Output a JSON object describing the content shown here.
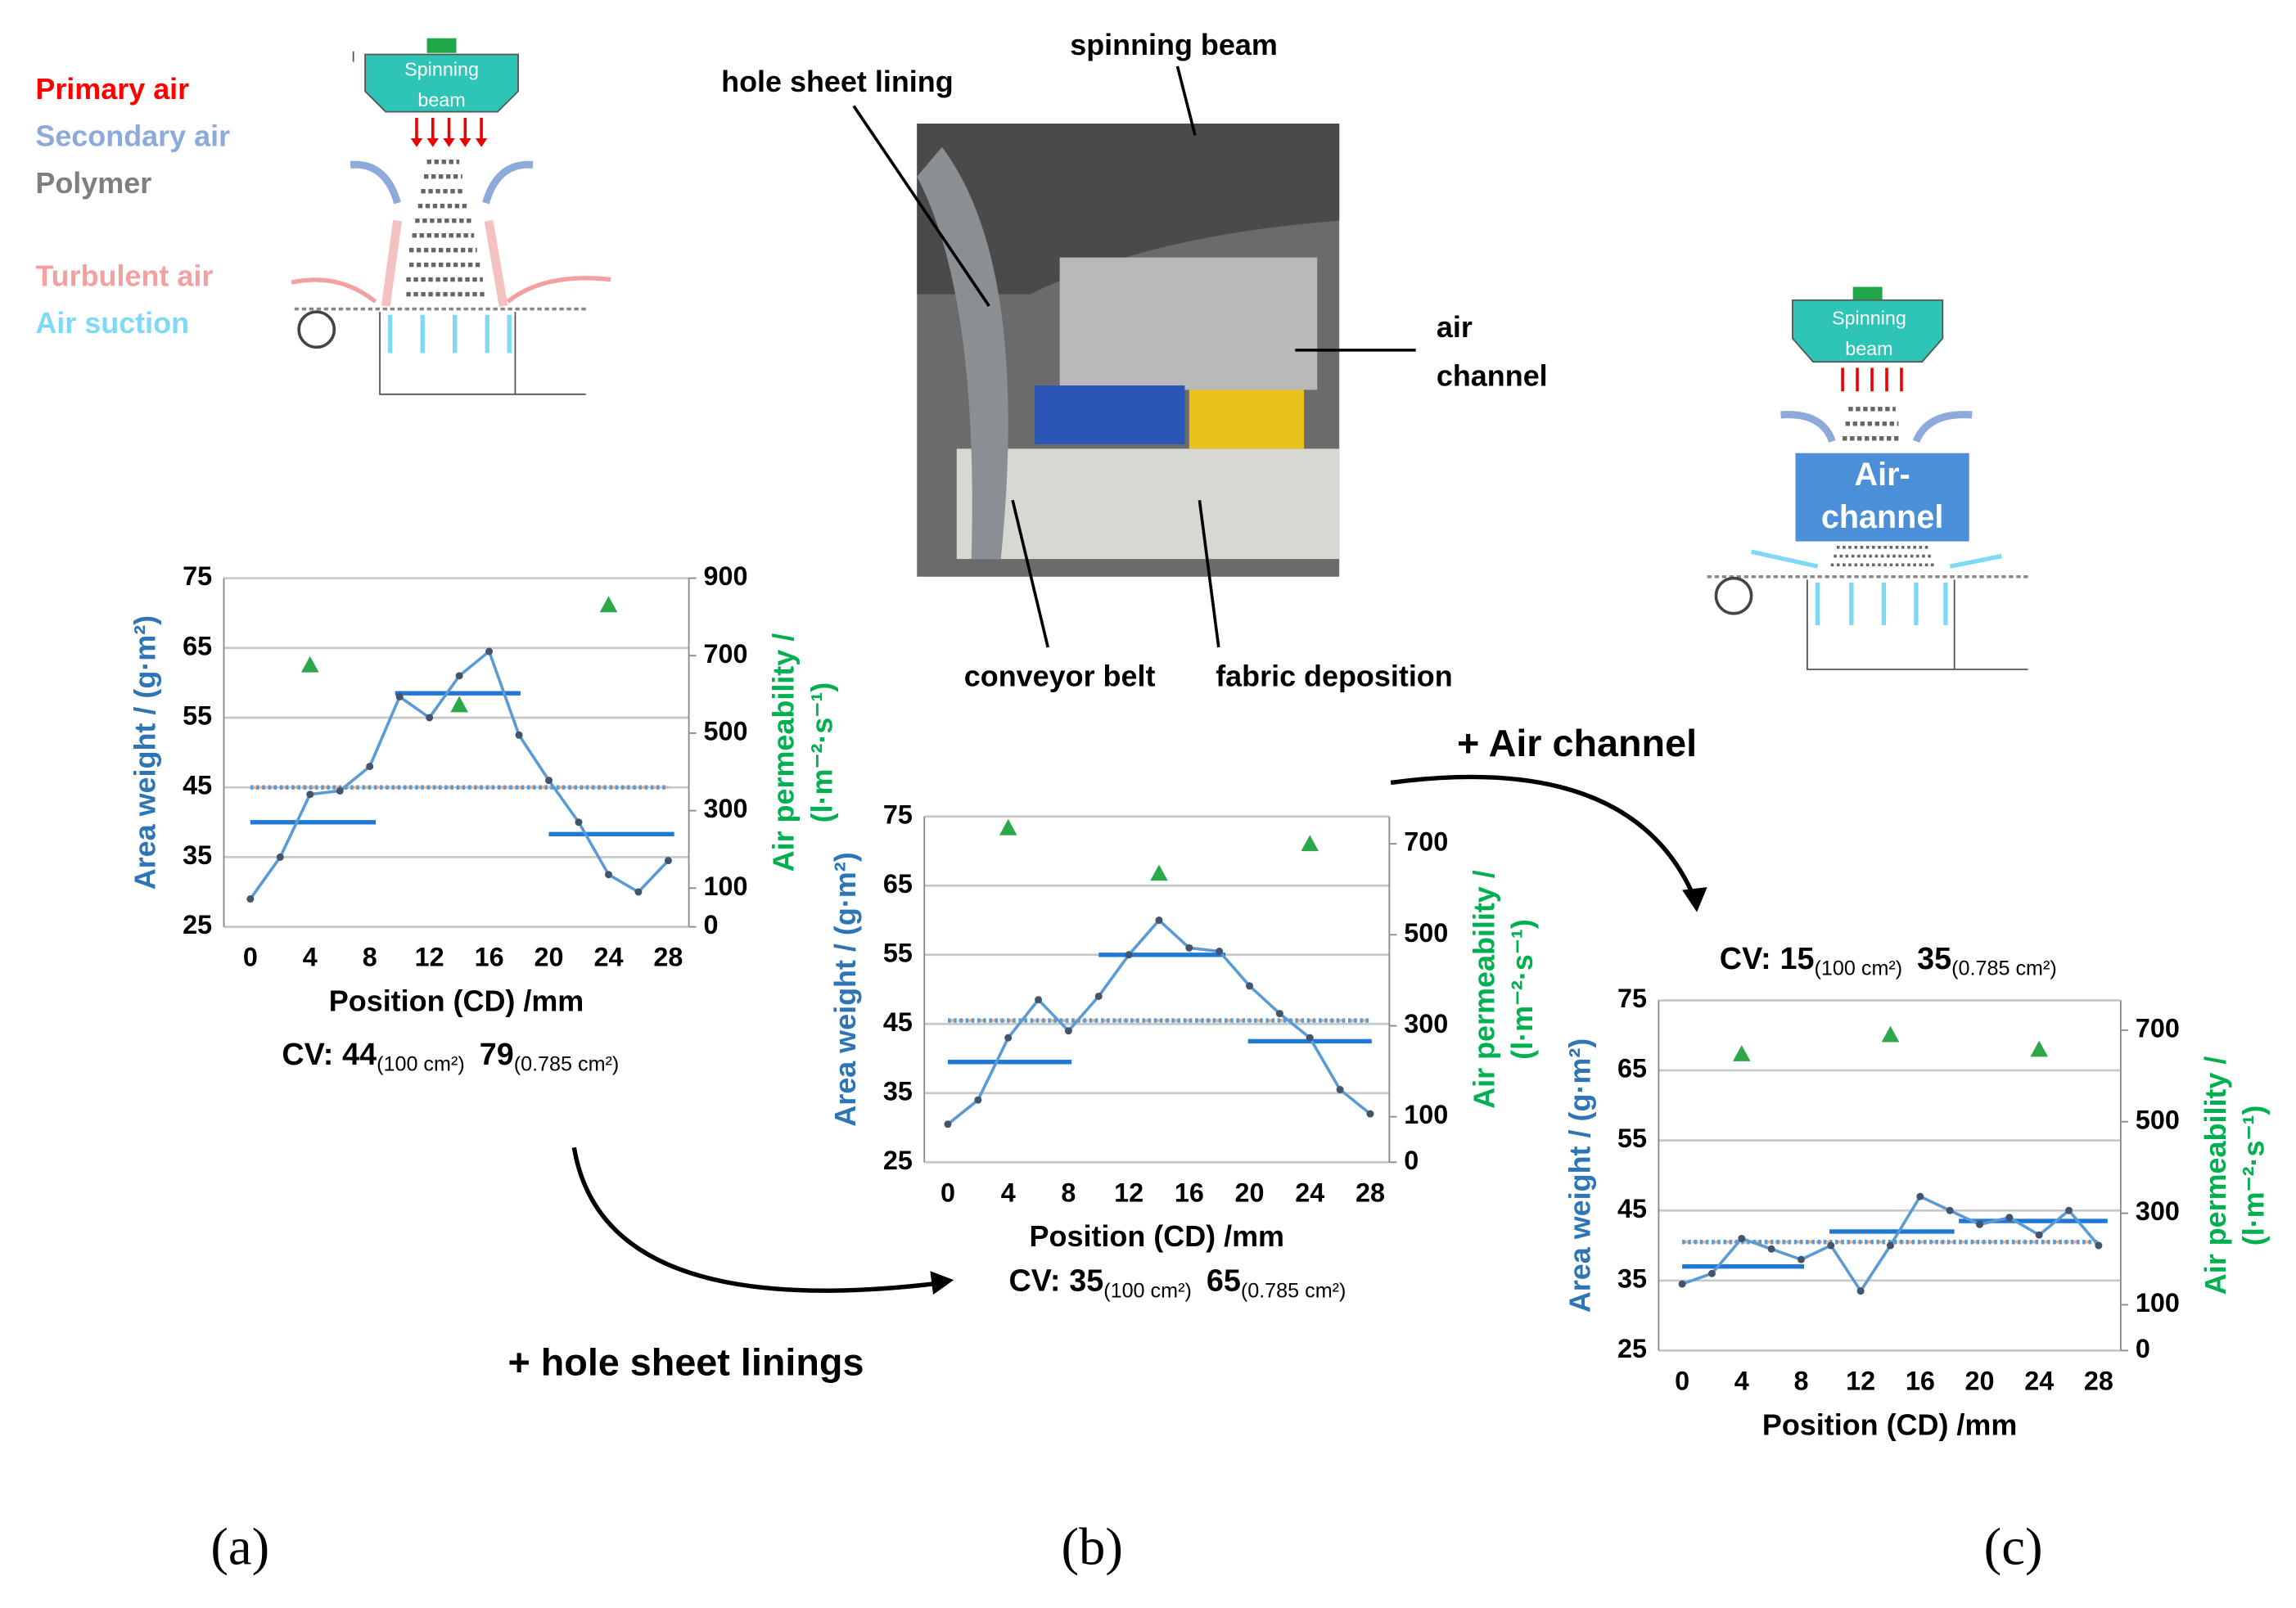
{
  "chart_data": [
    {
      "type": "line",
      "xlabel": "Position (CD) /mm",
      "ylabel": "Area weight / (g·m²)",
      "y2label": [
        "Air permeability /",
        "(l·m⁻²·s⁻¹)"
      ],
      "x": [
        0,
        2,
        4,
        6,
        8,
        10,
        12,
        14,
        16,
        18,
        20,
        22,
        24,
        26,
        28
      ],
      "series": [
        {
          "color": "#5b9bd5",
          "values": [
            29,
            35,
            44,
            44.5,
            48,
            58,
            55,
            61,
            64.5,
            52.5,
            46,
            40,
            32.5,
            30,
            34.5
          ]
        },
        {
          "axis": "y2",
          "color": "#2ca84a",
          "x": [
            4,
            14,
            24
          ],
          "values": [
            676,
            573,
            831
          ]
        }
      ],
      "segments": {
        "color": "#1f78d4",
        "items": [
          {
            "x": [
              0,
              8.4
            ],
            "value": 40
          },
          {
            "x": [
              9.7,
              18.1
            ],
            "value": 58.5
          },
          {
            "x": [
              20,
              28.4
            ],
            "value": 38.3
          }
        ]
      },
      "reference_lines": [
        {
          "value": 45,
          "color": "#f4b183"
        },
        {
          "value": 45,
          "color": "#5b9bd5"
        }
      ],
      "xlim": [
        0,
        28
      ],
      "xticks": [
        0,
        4,
        8,
        12,
        16,
        20,
        24,
        28
      ],
      "ylim": [
        25,
        75
      ],
      "yticks": [
        25,
        35,
        45,
        55,
        65,
        75
      ],
      "y2lim": [
        0,
        900
      ],
      "y2ticks": [
        0,
        100,
        300,
        500,
        700,
        900
      ],
      "grid": true,
      "cv_label": "CV:",
      "cv": [
        {
          "value": 44,
          "area": "(100 cm²)"
        },
        {
          "value": 79,
          "area": "(0.785 cm²)"
        }
      ]
    },
    {
      "type": "line",
      "xlabel": "Position (CD) /mm",
      "ylabel": "Area weight / (g·m²)",
      "y2label": [
        "Air permeability /",
        "(l·m⁻²·s⁻¹)"
      ],
      "x": [
        0,
        2,
        4,
        6,
        8,
        10,
        12,
        14,
        16,
        18,
        20,
        22,
        24,
        26,
        28
      ],
      "series": [
        {
          "color": "#5b9bd5",
          "values": [
            30.5,
            34,
            43,
            48.5,
            44,
            49,
            55,
            60,
            56,
            55.5,
            50.5,
            46.5,
            43,
            35.5,
            32
          ]
        },
        {
          "axis": "y2",
          "color": "#2ca84a",
          "x": [
            4,
            14,
            24
          ],
          "values": [
            735,
            635,
            700
          ]
        }
      ],
      "segments": {
        "color": "#1f78d4",
        "items": [
          {
            "x": [
              0,
              8.2
            ],
            "value": 39.5
          },
          {
            "x": [
              10,
              18.4
            ],
            "value": 55
          },
          {
            "x": [
              19.9,
              28.1
            ],
            "value": 42.5
          }
        ]
      },
      "reference_lines": [
        {
          "value": 45.5,
          "color": "#f4b183"
        },
        {
          "value": 45.5,
          "color": "#5b9bd5"
        }
      ],
      "xlim": [
        0,
        28
      ],
      "xticks": [
        0,
        4,
        8,
        12,
        16,
        20,
        24,
        28
      ],
      "ylim": [
        25,
        75
      ],
      "yticks": [
        25,
        35,
        45,
        55,
        65,
        75
      ],
      "y2lim": [
        0,
        760
      ],
      "y2ticks": [
        0,
        100,
        300,
        500,
        700
      ],
      "grid": true,
      "cv_label": "CV:",
      "cv": [
        {
          "value": 35,
          "area": "(100 cm²)"
        },
        {
          "value": 65,
          "area": "(0.785 cm²)"
        }
      ]
    },
    {
      "type": "line",
      "xlabel": "Position (CD) /mm",
      "ylabel": "Area weight / (g·m²)",
      "y2label": [
        "Air permeability /",
        "(l·m⁻²·s⁻¹)"
      ],
      "x": [
        0,
        2,
        4,
        6,
        8,
        10,
        12,
        14,
        16,
        18,
        20,
        22,
        24,
        26,
        28
      ],
      "series": [
        {
          "color": "#5b9bd5",
          "values": [
            34.5,
            36,
            41,
            39.5,
            38,
            40,
            33.5,
            40,
            47,
            45,
            43,
            44,
            41.5,
            45,
            40
          ]
        },
        {
          "axis": "y2",
          "color": "#2ca84a",
          "x": [
            4,
            14,
            24
          ],
          "values": [
            648,
            690,
            658
          ]
        }
      ],
      "segments": {
        "color": "#1f78d4",
        "items": [
          {
            "x": [
              0,
              8.2
            ],
            "value": 37
          },
          {
            "x": [
              9.9,
              18.3
            ],
            "value": 42
          },
          {
            "x": [
              18.6,
              28.6
            ],
            "value": 43.5
          }
        ]
      },
      "reference_lines": [
        {
          "value": 40.5,
          "color": "#f4b183"
        },
        {
          "value": 40.5,
          "color": "#5b9bd5"
        }
      ],
      "xlim": [
        0,
        28
      ],
      "xticks": [
        0,
        4,
        8,
        12,
        16,
        20,
        24,
        28
      ],
      "ylim": [
        25,
        75
      ],
      "yticks": [
        25,
        35,
        45,
        55,
        65,
        75
      ],
      "y2lim": [
        0,
        765
      ],
      "y2ticks": [
        0,
        100,
        300,
        500,
        700
      ],
      "grid": true,
      "cv_label": "CV:",
      "cv": [
        {
          "value": 15,
          "area": "(100 cm²)"
        },
        {
          "value": 35,
          "area": "(0.785 cm²)"
        }
      ]
    }
  ],
  "legend": [
    "Primary air",
    "Secondary air",
    "Polymer",
    "Turbulent air",
    "Air suction"
  ],
  "diagram": {
    "beam": [
      "Spinning",
      "beam"
    ],
    "channel": [
      "Air-",
      "channel"
    ]
  },
  "photo": {
    "hole_sheet": "hole sheet lining",
    "beam": "spinning beam",
    "channel": [
      "air",
      "channel"
    ],
    "belt": "conveyor belt",
    "deposition": "fabric deposition"
  },
  "annotations": [
    "+ Air channel",
    "+ hole sheet linings"
  ],
  "panel_labels": [
    "(a)",
    "(b)",
    "(c)"
  ]
}
